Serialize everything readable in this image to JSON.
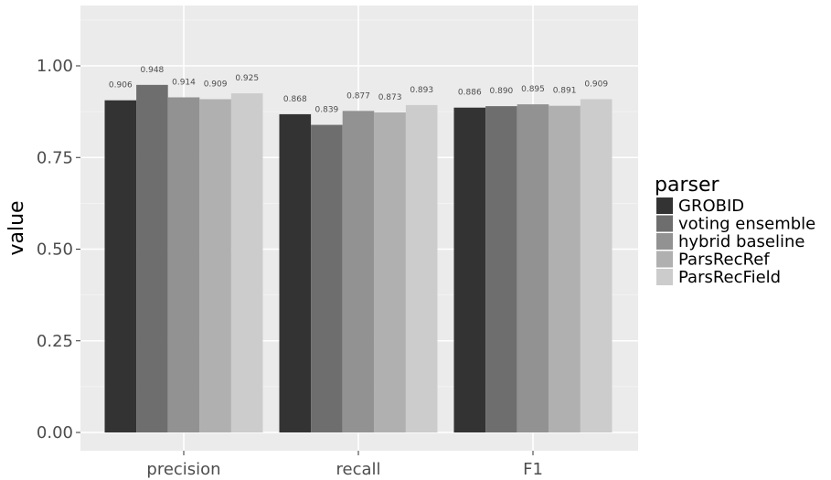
{
  "chart_data": {
    "type": "bar",
    "categories": [
      "precision",
      "recall",
      "F1"
    ],
    "series": [
      {
        "name": "GROBID",
        "values": [
          0.906,
          0.868,
          0.886
        ],
        "color": "#333333"
      },
      {
        "name": "voting ensemble",
        "values": [
          0.948,
          0.839,
          0.89
        ],
        "color": "#6e6e6e"
      },
      {
        "name": "hybrid baseline",
        "values": [
          0.914,
          0.877,
          0.895
        ],
        "color": "#929292"
      },
      {
        "name": "ParsRecRef",
        "values": [
          0.909,
          0.873,
          0.891
        ],
        "color": "#b0b0b0"
      },
      {
        "name": "ParsRecField",
        "values": [
          0.925,
          0.893,
          0.909
        ],
        "color": "#cccccc"
      }
    ],
    "data_labels": [
      [
        "0.906",
        "0.948",
        "0.914",
        "0.909",
        "0.925"
      ],
      [
        "0.868",
        "0.839",
        "0.877",
        "0.873",
        "0.893"
      ],
      [
        "0.886",
        "0.890",
        "0.895",
        "0.891",
        "0.909"
      ]
    ],
    "ylabel": "value",
    "ylim": [
      0,
      1.1
    ],
    "yticks": [
      0,
      0.25,
      0.5,
      0.75,
      1.0
    ],
    "ytick_labels": [
      "0.00",
      "0.25",
      "0.50",
      "0.75",
      "1.00"
    ],
    "legend_title": "parser",
    "legend_position": "right",
    "grid": true,
    "panel_color": "#ebebeb"
  }
}
